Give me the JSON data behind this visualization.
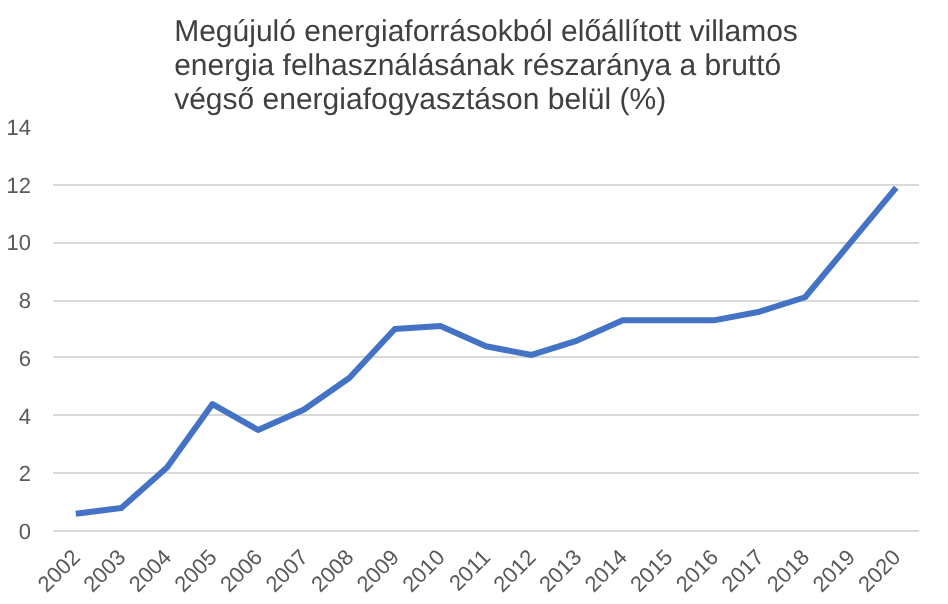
{
  "chart_data": {
    "type": "line",
    "title": "Megújuló energiaforrásokból előállított villamos\nenergia felhasználásának részaránya a bruttó\nvégső energiafogyasztáson belül (%)",
    "categories": [
      "2002",
      "2003",
      "2004",
      "2005",
      "2006",
      "2007",
      "2008",
      "2009",
      "2010",
      "2011",
      "2012",
      "2013",
      "2014",
      "2015",
      "2016",
      "2017",
      "2018",
      "2019",
      "2020"
    ],
    "series": [
      {
        "color": "#4472c4",
        "values": [
          0.6,
          0.8,
          2.2,
          4.4,
          3.5,
          4.2,
          5.3,
          7.0,
          7.1,
          6.4,
          6.1,
          6.6,
          7.3,
          7.3,
          7.3,
          7.6,
          8.1,
          10.0,
          11.9
        ]
      }
    ],
    "ylim": [
      0,
      14
    ],
    "yticks": [
      0,
      2,
      4,
      6,
      8,
      10,
      12,
      14
    ],
    "grid": "y",
    "marker": "none",
    "line_style": "solid"
  }
}
